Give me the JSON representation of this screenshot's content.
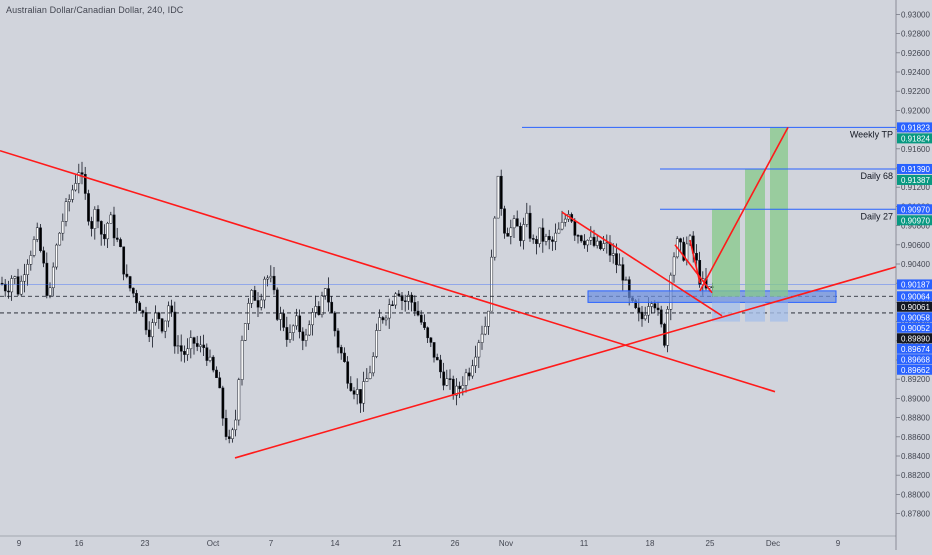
{
  "header": {
    "title": "Australian Dollar/Canadian Dollar, 240, IDC"
  },
  "colors": {
    "background": "#d1d4dc",
    "bull_candle": "#ffffff",
    "bear_candle": "#000000",
    "trendline": "#ff1a1a",
    "level_line": "#2962ff",
    "target_fill": "#86c98a",
    "stop_fill": "#a8bfe8",
    "zone_fill": "#6b8fe0",
    "tag_blue": "#2962ff",
    "tag_green": "#089981",
    "tag_black": "#131722",
    "tag_gray": "#787b86"
  },
  "chart_data": {
    "type": "candlestick",
    "title": "Australian Dollar/Canadian Dollar, 240, IDC",
    "x_ticks": [
      "9",
      "16",
      "23",
      "Oct",
      "7",
      "14",
      "21",
      "26",
      "Nov",
      "11",
      "18",
      "25",
      "Dec",
      "9"
    ],
    "y_range": [
      0.8765,
      0.9315
    ],
    "y_ticks": [
      "0.93000",
      "0.92800",
      "0.92600",
      "0.92400",
      "0.92200",
      "0.92000",
      "0.91800",
      "0.91600",
      "0.91400",
      "0.91200",
      "0.91000",
      "0.90800",
      "0.90600",
      "0.90400",
      "0.90200",
      "0.90000",
      "0.89800",
      "0.89600",
      "0.89400",
      "0.89200",
      "0.89000",
      "0.88800",
      "0.88600",
      "0.88400",
      "0.88200",
      "0.88000",
      "0.87800"
    ],
    "price_path": [
      [
        0,
        0.902
      ],
      [
        6,
        0.9015
      ],
      [
        12,
        0.903
      ],
      [
        18,
        0.901
      ],
      [
        24,
        0.904
      ],
      [
        30,
        0.9055
      ],
      [
        36,
        0.907
      ],
      [
        42,
        0.904
      ],
      [
        48,
        0.9
      ],
      [
        54,
        0.905
      ],
      [
        60,
        0.908
      ],
      [
        66,
        0.91
      ],
      [
        72,
        0.912
      ],
      [
        78,
        0.914
      ],
      [
        84,
        0.911
      ],
      [
        90,
        0.908
      ],
      [
        96,
        0.91
      ],
      [
        102,
        0.906
      ],
      [
        108,
        0.909
      ],
      [
        114,
        0.907
      ],
      [
        120,
        0.905
      ],
      [
        126,
        0.902
      ],
      [
        132,
        0.901
      ],
      [
        138,
        0.9
      ],
      [
        144,
        0.898
      ],
      [
        150,
        0.897
      ],
      [
        156,
        0.899
      ],
      [
        162,
        0.8975
      ],
      [
        168,
        0.9
      ],
      [
        174,
        0.896
      ],
      [
        180,
        0.895
      ],
      [
        186,
        0.8945
      ],
      [
        192,
        0.896
      ],
      [
        198,
        0.895
      ],
      [
        204,
        0.8955
      ],
      [
        210,
        0.893
      ],
      [
        216,
        0.892
      ],
      [
        222,
        0.888
      ],
      [
        228,
        0.885
      ],
      [
        234,
        0.887
      ],
      [
        240,
        0.896
      ],
      [
        246,
        0.899
      ],
      [
        252,
        0.901
      ],
      [
        258,
        0.9
      ],
      [
        264,
        0.903
      ],
      [
        270,
        0.902
      ],
      [
        276,
        0.899
      ],
      [
        282,
        0.898
      ],
      [
        288,
        0.896
      ],
      [
        294,
        0.898
      ],
      [
        300,
        0.897
      ],
      [
        306,
        0.896
      ],
      [
        312,
        0.9
      ],
      [
        318,
        0.898
      ],
      [
        324,
        0.902
      ],
      [
        330,
        0.899
      ],
      [
        336,
        0.896
      ],
      [
        342,
        0.894
      ],
      [
        348,
        0.892
      ],
      [
        354,
        0.891
      ],
      [
        360,
        0.89
      ],
      [
        366,
        0.892
      ],
      [
        372,
        0.894
      ],
      [
        378,
        0.898
      ],
      [
        384,
        0.899
      ],
      [
        390,
        0.9
      ],
      [
        396,
        0.902
      ],
      [
        402,
        0.9
      ],
      [
        408,
        0.9005
      ],
      [
        414,
        0.8995
      ],
      [
        420,
        0.898
      ],
      [
        426,
        0.896
      ],
      [
        432,
        0.895
      ],
      [
        438,
        0.893
      ],
      [
        444,
        0.892
      ],
      [
        450,
        0.891
      ],
      [
        456,
        0.8905
      ],
      [
        462,
        0.892
      ],
      [
        468,
        0.893
      ],
      [
        474,
        0.895
      ],
      [
        480,
        0.897
      ],
      [
        486,
        0.898
      ],
      [
        490,
        0.903
      ],
      [
        494,
        0.91
      ],
      [
        498,
        0.913
      ],
      [
        502,
        0.908
      ],
      [
        508,
        0.9075
      ],
      [
        514,
        0.908
      ],
      [
        520,
        0.907
      ],
      [
        526,
        0.9085
      ],
      [
        532,
        0.906
      ],
      [
        538,
        0.907
      ],
      [
        544,
        0.9065
      ],
      [
        550,
        0.906
      ],
      [
        556,
        0.907
      ],
      [
        562,
        0.908
      ],
      [
        568,
        0.91
      ],
      [
        574,
        0.9075
      ],
      [
        580,
        0.907
      ],
      [
        586,
        0.9065
      ],
      [
        592,
        0.906
      ],
      [
        598,
        0.9055
      ],
      [
        604,
        0.906
      ],
      [
        610,
        0.905
      ],
      [
        616,
        0.904
      ],
      [
        622,
        0.903
      ],
      [
        628,
        0.9
      ],
      [
        634,
        0.899
      ],
      [
        640,
        0.898
      ],
      [
        646,
        0.9
      ],
      [
        652,
        0.901
      ],
      [
        658,
        0.898
      ],
      [
        664,
        0.896
      ],
      [
        670,
        0.904
      ],
      [
        676,
        0.906
      ],
      [
        682,
        0.905
      ],
      [
        688,
        0.9065
      ],
      [
        694,
        0.9045
      ],
      [
        700,
        0.902
      ],
      [
        706,
        0.901
      ],
      [
        712,
        0.9015
      ]
    ],
    "annotations": {
      "levels": [
        {
          "label": "Weekly TP",
          "price": 0.91823,
          "tag": "0.91823",
          "tag2": "0.91824"
        },
        {
          "label": "Daily 68",
          "price": 0.9139,
          "tag": "0.91390",
          "tag2": "0.91387"
        },
        {
          "label": "Daily 27",
          "price": 0.9097,
          "tag": "0.90970",
          "tag2": "0.90970"
        }
      ],
      "right_tags": [
        {
          "text": "0.90187",
          "kind": "blue",
          "price": 0.90187
        },
        {
          "text": "0.90064",
          "kind": "blue",
          "price": 0.90064
        },
        {
          "text": "0.90061",
          "kind": "black",
          "price": 0.90061
        },
        {
          "text": "0.90058",
          "kind": "blue",
          "price": 0.90058
        },
        {
          "text": "0.90052",
          "kind": "blue",
          "price": 0.90052
        },
        {
          "text": "0.89890",
          "kind": "black",
          "price": 0.8989
        },
        {
          "text": "0.89674",
          "kind": "blue",
          "price": 0.89674
        },
        {
          "text": "0.89668",
          "kind": "blue",
          "price": 0.89668
        },
        {
          "text": "0.89662",
          "kind": "blue",
          "price": 0.89662
        }
      ],
      "dashed_levels": [
        0.90064,
        0.8989
      ],
      "thin_level": 0.90187
    }
  }
}
